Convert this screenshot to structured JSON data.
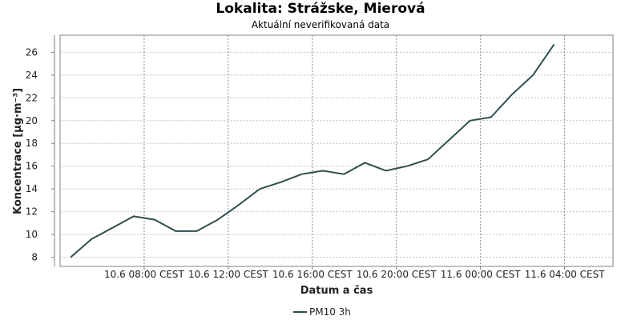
{
  "chart_data": {
    "type": "line",
    "title": "Lokalita: Strážske, Mierová",
    "subtitle": "Aktuální neverifikovaná data",
    "xlabel": "Datum a čas",
    "ylabel": "Koncentrace [µg·m⁻³]",
    "x_tick_labels": [
      "10.6 08:00 CEST",
      "10.6 12:00 CEST",
      "10.6 16:00 CEST",
      "10.6 20:00 CEST",
      "11.6 00:00 CEST",
      "11.6 04:00 CEST"
    ],
    "x_tick_hours": [
      8,
      12,
      16,
      20,
      24,
      28
    ],
    "y_ticks": [
      8,
      10,
      12,
      14,
      16,
      18,
      20,
      22,
      24,
      26
    ],
    "xlim_hours": [
      4.0,
      30.3
    ],
    "ylim": [
      7.2,
      27.5
    ],
    "grid": true,
    "legend_position": "bottom-center",
    "series": [
      {
        "name": "PM10 3h",
        "color": "#2f4f4f",
        "x_hours": [
          4.5,
          5.5,
          6.5,
          7.5,
          8.5,
          9.5,
          10.5,
          11.5,
          12.5,
          13.5,
          14.5,
          15.5,
          16.5,
          17.5,
          18.5,
          19.5,
          20.5,
          21.5,
          22.5,
          23.5,
          24.5,
          25.5,
          26.5,
          27.5,
          28.5
        ],
        "values": [
          8.0,
          9.6,
          10.6,
          11.6,
          11.3,
          10.3,
          10.3,
          11.3,
          12.6,
          14.0,
          14.6,
          15.3,
          15.6,
          15.3,
          16.3,
          15.6,
          16.0,
          16.6,
          18.3,
          20.0,
          20.3,
          22.3,
          24.0,
          26.7,
          null
        ]
      }
    ]
  }
}
